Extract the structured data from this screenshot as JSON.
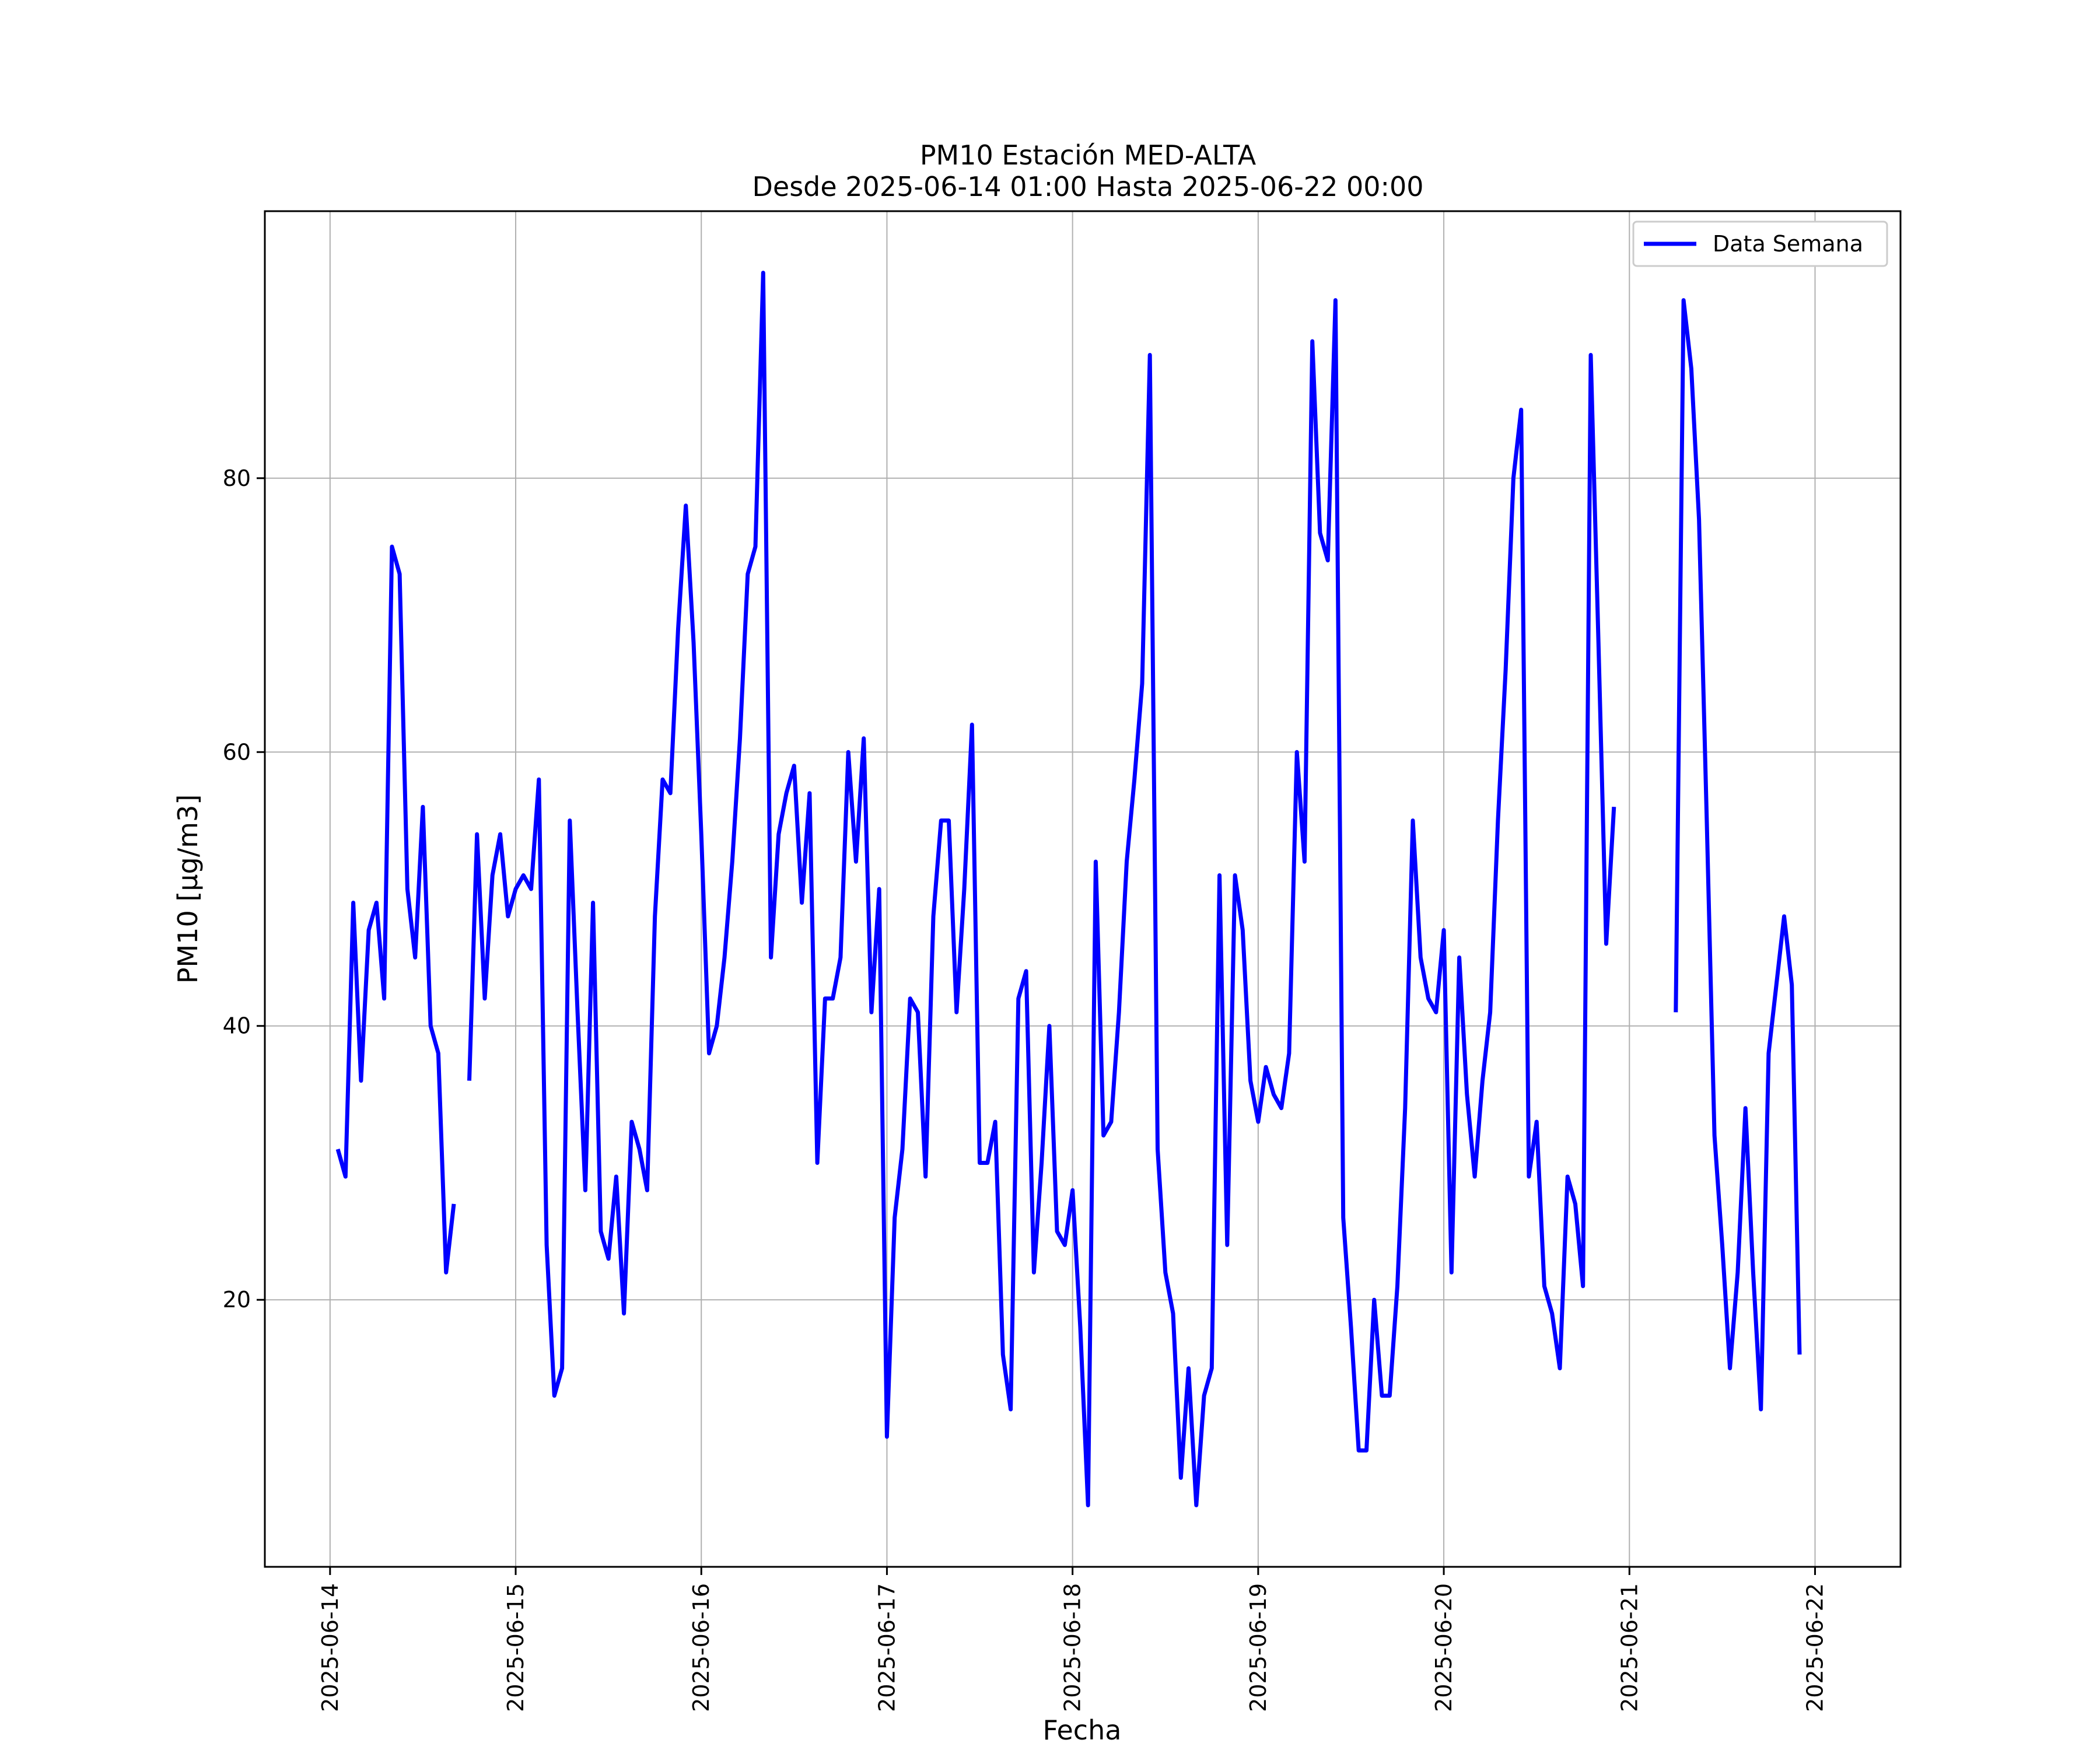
{
  "chart_data": {
    "type": "line",
    "title": "PM10 Estación MED-ALTA",
    "subtitle": "Desde 2025-06-14 01:00 Hasta 2025-06-22 00:00",
    "xlabel": "Fecha",
    "ylabel": "PM10 [μg/m3]",
    "x_ticks": [
      "2025-06-14",
      "2025-06-15",
      "2025-06-16",
      "2025-06-17",
      "2025-06-18",
      "2025-06-19",
      "2025-06-20",
      "2025-06-21",
      "2025-06-22"
    ],
    "y_ticks": [
      20,
      40,
      60,
      80
    ],
    "xlim": [
      "2025-06-13 15:34",
      "2025-06-22 11:03"
    ],
    "ylim": [
      0.5,
      99.5
    ],
    "grid": true,
    "legend_position": "top-right",
    "series": [
      {
        "name": "Data Semana",
        "color": "#0000ff",
        "points": [
          [
            "2025-06-14 01:00",
            31
          ],
          [
            "2025-06-14 02:00",
            29
          ],
          [
            "2025-06-14 03:00",
            49
          ],
          [
            "2025-06-14 04:00",
            36
          ],
          [
            "2025-06-14 05:00",
            47
          ],
          [
            "2025-06-14 06:00",
            49
          ],
          [
            "2025-06-14 07:00",
            42
          ],
          [
            "2025-06-14 08:00",
            75
          ],
          [
            "2025-06-14 09:00",
            73
          ],
          [
            "2025-06-14 10:00",
            50
          ],
          [
            "2025-06-14 11:00",
            45
          ],
          [
            "2025-06-14 12:00",
            56
          ],
          [
            "2025-06-14 13:00",
            40
          ],
          [
            "2025-06-14 14:00",
            38
          ],
          [
            "2025-06-14 15:00",
            22
          ],
          [
            "2025-06-14 16:00",
            27
          ],
          [
            "2025-06-14 17:00",
            null
          ],
          [
            "2025-06-14 18:00",
            36
          ],
          [
            "2025-06-14 19:00",
            54
          ],
          [
            "2025-06-14 20:00",
            42
          ],
          [
            "2025-06-14 21:00",
            51
          ],
          [
            "2025-06-14 22:00",
            54
          ],
          [
            "2025-06-14 23:00",
            48
          ],
          [
            "2025-06-15 00:00",
            50
          ],
          [
            "2025-06-15 01:00",
            51
          ],
          [
            "2025-06-15 02:00",
            50
          ],
          [
            "2025-06-15 03:00",
            58
          ],
          [
            "2025-06-15 04:00",
            24
          ],
          [
            "2025-06-15 05:00",
            13
          ],
          [
            "2025-06-15 06:00",
            15
          ],
          [
            "2025-06-15 07:00",
            55
          ],
          [
            "2025-06-15 08:00",
            41
          ],
          [
            "2025-06-15 09:00",
            28
          ],
          [
            "2025-06-15 10:00",
            49
          ],
          [
            "2025-06-15 11:00",
            25
          ],
          [
            "2025-06-15 12:00",
            23
          ],
          [
            "2025-06-15 13:00",
            29
          ],
          [
            "2025-06-15 14:00",
            19
          ],
          [
            "2025-06-15 15:00",
            33
          ],
          [
            "2025-06-15 16:00",
            31
          ],
          [
            "2025-06-15 17:00",
            28
          ],
          [
            "2025-06-15 18:00",
            48
          ],
          [
            "2025-06-15 19:00",
            58
          ],
          [
            "2025-06-15 20:00",
            57
          ],
          [
            "2025-06-15 21:00",
            69
          ],
          [
            "2025-06-15 22:00",
            78
          ],
          [
            "2025-06-15 23:00",
            68
          ],
          [
            "2025-06-16 00:00",
            54
          ],
          [
            "2025-06-16 01:00",
            38
          ],
          [
            "2025-06-16 02:00",
            40
          ],
          [
            "2025-06-16 03:00",
            45
          ],
          [
            "2025-06-16 04:00",
            52
          ],
          [
            "2025-06-16 05:00",
            61
          ],
          [
            "2025-06-16 06:00",
            73
          ],
          [
            "2025-06-16 07:00",
            75
          ],
          [
            "2025-06-16 08:00",
            95
          ],
          [
            "2025-06-16 09:00",
            45
          ],
          [
            "2025-06-16 10:00",
            54
          ],
          [
            "2025-06-16 11:00",
            57
          ],
          [
            "2025-06-16 12:00",
            59
          ],
          [
            "2025-06-16 13:00",
            49
          ],
          [
            "2025-06-16 14:00",
            57
          ],
          [
            "2025-06-16 15:00",
            30
          ],
          [
            "2025-06-16 16:00",
            42
          ],
          [
            "2025-06-16 17:00",
            42
          ],
          [
            "2025-06-16 18:00",
            45
          ],
          [
            "2025-06-16 19:00",
            60
          ],
          [
            "2025-06-16 20:00",
            52
          ],
          [
            "2025-06-16 21:00",
            61
          ],
          [
            "2025-06-16 22:00",
            41
          ],
          [
            "2025-06-16 23:00",
            50
          ],
          [
            "2025-06-17 00:00",
            10
          ],
          [
            "2025-06-17 01:00",
            26
          ],
          [
            "2025-06-17 02:00",
            31
          ],
          [
            "2025-06-17 03:00",
            42
          ],
          [
            "2025-06-17 04:00",
            41
          ],
          [
            "2025-06-17 05:00",
            29
          ],
          [
            "2025-06-17 06:00",
            48
          ],
          [
            "2025-06-17 07:00",
            55
          ],
          [
            "2025-06-17 08:00",
            55
          ],
          [
            "2025-06-17 09:00",
            41
          ],
          [
            "2025-06-17 10:00",
            50
          ],
          [
            "2025-06-17 11:00",
            62
          ],
          [
            "2025-06-17 12:00",
            30
          ],
          [
            "2025-06-17 13:00",
            30
          ],
          [
            "2025-06-17 14:00",
            33
          ],
          [
            "2025-06-17 15:00",
            16
          ],
          [
            "2025-06-17 16:00",
            12
          ],
          [
            "2025-06-17 17:00",
            42
          ],
          [
            "2025-06-17 18:00",
            44
          ],
          [
            "2025-06-17 19:00",
            22
          ],
          [
            "2025-06-17 20:00",
            30
          ],
          [
            "2025-06-17 21:00",
            40
          ],
          [
            "2025-06-17 22:00",
            25
          ],
          [
            "2025-06-17 23:00",
            24
          ],
          [
            "2025-06-18 00:00",
            28
          ],
          [
            "2025-06-18 01:00",
            18
          ],
          [
            "2025-06-18 02:00",
            5
          ],
          [
            "2025-06-18 03:00",
            52
          ],
          [
            "2025-06-18 04:00",
            32
          ],
          [
            "2025-06-18 05:00",
            33
          ],
          [
            "2025-06-18 06:00",
            41
          ],
          [
            "2025-06-18 07:00",
            52
          ],
          [
            "2025-06-18 08:00",
            58
          ],
          [
            "2025-06-18 09:00",
            65
          ],
          [
            "2025-06-18 10:00",
            89
          ],
          [
            "2025-06-18 11:00",
            31
          ],
          [
            "2025-06-18 12:00",
            22
          ],
          [
            "2025-06-18 13:00",
            19
          ],
          [
            "2025-06-18 14:00",
            7
          ],
          [
            "2025-06-18 15:00",
            15
          ],
          [
            "2025-06-18 16:00",
            5
          ],
          [
            "2025-06-18 17:00",
            13
          ],
          [
            "2025-06-18 18:00",
            15
          ],
          [
            "2025-06-18 19:00",
            51
          ],
          [
            "2025-06-18 20:00",
            24
          ],
          [
            "2025-06-18 21:00",
            51
          ],
          [
            "2025-06-18 22:00",
            47
          ],
          [
            "2025-06-18 23:00",
            36
          ],
          [
            "2025-06-19 00:00",
            33
          ],
          [
            "2025-06-19 01:00",
            37
          ],
          [
            "2025-06-19 02:00",
            35
          ],
          [
            "2025-06-19 03:00",
            34
          ],
          [
            "2025-06-19 04:00",
            38
          ],
          [
            "2025-06-19 05:00",
            60
          ],
          [
            "2025-06-19 06:00",
            52
          ],
          [
            "2025-06-19 07:00",
            90
          ],
          [
            "2025-06-19 08:00",
            76
          ],
          [
            "2025-06-19 09:00",
            74
          ],
          [
            "2025-06-19 10:00",
            93
          ],
          [
            "2025-06-19 11:00",
            26
          ],
          [
            "2025-06-19 12:00",
            18
          ],
          [
            "2025-06-19 13:00",
            9
          ],
          [
            "2025-06-19 14:00",
            9
          ],
          [
            "2025-06-19 15:00",
            20
          ],
          [
            "2025-06-19 16:00",
            13
          ],
          [
            "2025-06-19 17:00",
            13
          ],
          [
            "2025-06-19 18:00",
            21
          ],
          [
            "2025-06-19 19:00",
            34
          ],
          [
            "2025-06-19 20:00",
            55
          ],
          [
            "2025-06-19 21:00",
            45
          ],
          [
            "2025-06-19 22:00",
            42
          ],
          [
            "2025-06-19 23:00",
            41
          ],
          [
            "2025-06-20 00:00",
            47
          ],
          [
            "2025-06-20 01:00",
            22
          ],
          [
            "2025-06-20 02:00",
            45
          ],
          [
            "2025-06-20 03:00",
            35
          ],
          [
            "2025-06-20 04:00",
            29
          ],
          [
            "2025-06-20 05:00",
            36
          ],
          [
            "2025-06-20 06:00",
            41
          ],
          [
            "2025-06-20 07:00",
            55
          ],
          [
            "2025-06-20 08:00",
            66
          ],
          [
            "2025-06-20 09:00",
            80
          ],
          [
            "2025-06-20 10:00",
            85
          ],
          [
            "2025-06-20 11:00",
            29
          ],
          [
            "2025-06-20 12:00",
            33
          ],
          [
            "2025-06-20 13:00",
            21
          ],
          [
            "2025-06-20 14:00",
            19
          ],
          [
            "2025-06-20 15:00",
            15
          ],
          [
            "2025-06-20 16:00",
            29
          ],
          [
            "2025-06-20 17:00",
            27
          ],
          [
            "2025-06-20 18:00",
            21
          ],
          [
            "2025-06-20 19:00",
            89
          ],
          [
            "2025-06-20 20:00",
            68
          ],
          [
            "2025-06-20 21:00",
            46
          ],
          [
            "2025-06-20 22:00",
            56
          ],
          [
            "2025-06-20 23:00",
            null
          ],
          [
            "2025-06-21 06:00",
            41
          ],
          [
            "2025-06-21 07:00",
            93
          ],
          [
            "2025-06-21 08:00",
            88
          ],
          [
            "2025-06-21 09:00",
            77
          ],
          [
            "2025-06-21 10:00",
            55
          ],
          [
            "2025-06-21 11:00",
            32
          ],
          [
            "2025-06-21 12:00",
            24
          ],
          [
            "2025-06-21 13:00",
            15
          ],
          [
            "2025-06-21 14:00",
            22
          ],
          [
            "2025-06-21 15:00",
            34
          ],
          [
            "2025-06-21 16:00",
            22
          ],
          [
            "2025-06-21 17:00",
            12
          ],
          [
            "2025-06-21 18:00",
            38
          ],
          [
            "2025-06-21 19:00",
            43
          ],
          [
            "2025-06-21 20:00",
            48
          ],
          [
            "2025-06-21 21:00",
            43
          ],
          [
            "2025-06-21 22:00",
            16
          ]
        ]
      }
    ]
  }
}
